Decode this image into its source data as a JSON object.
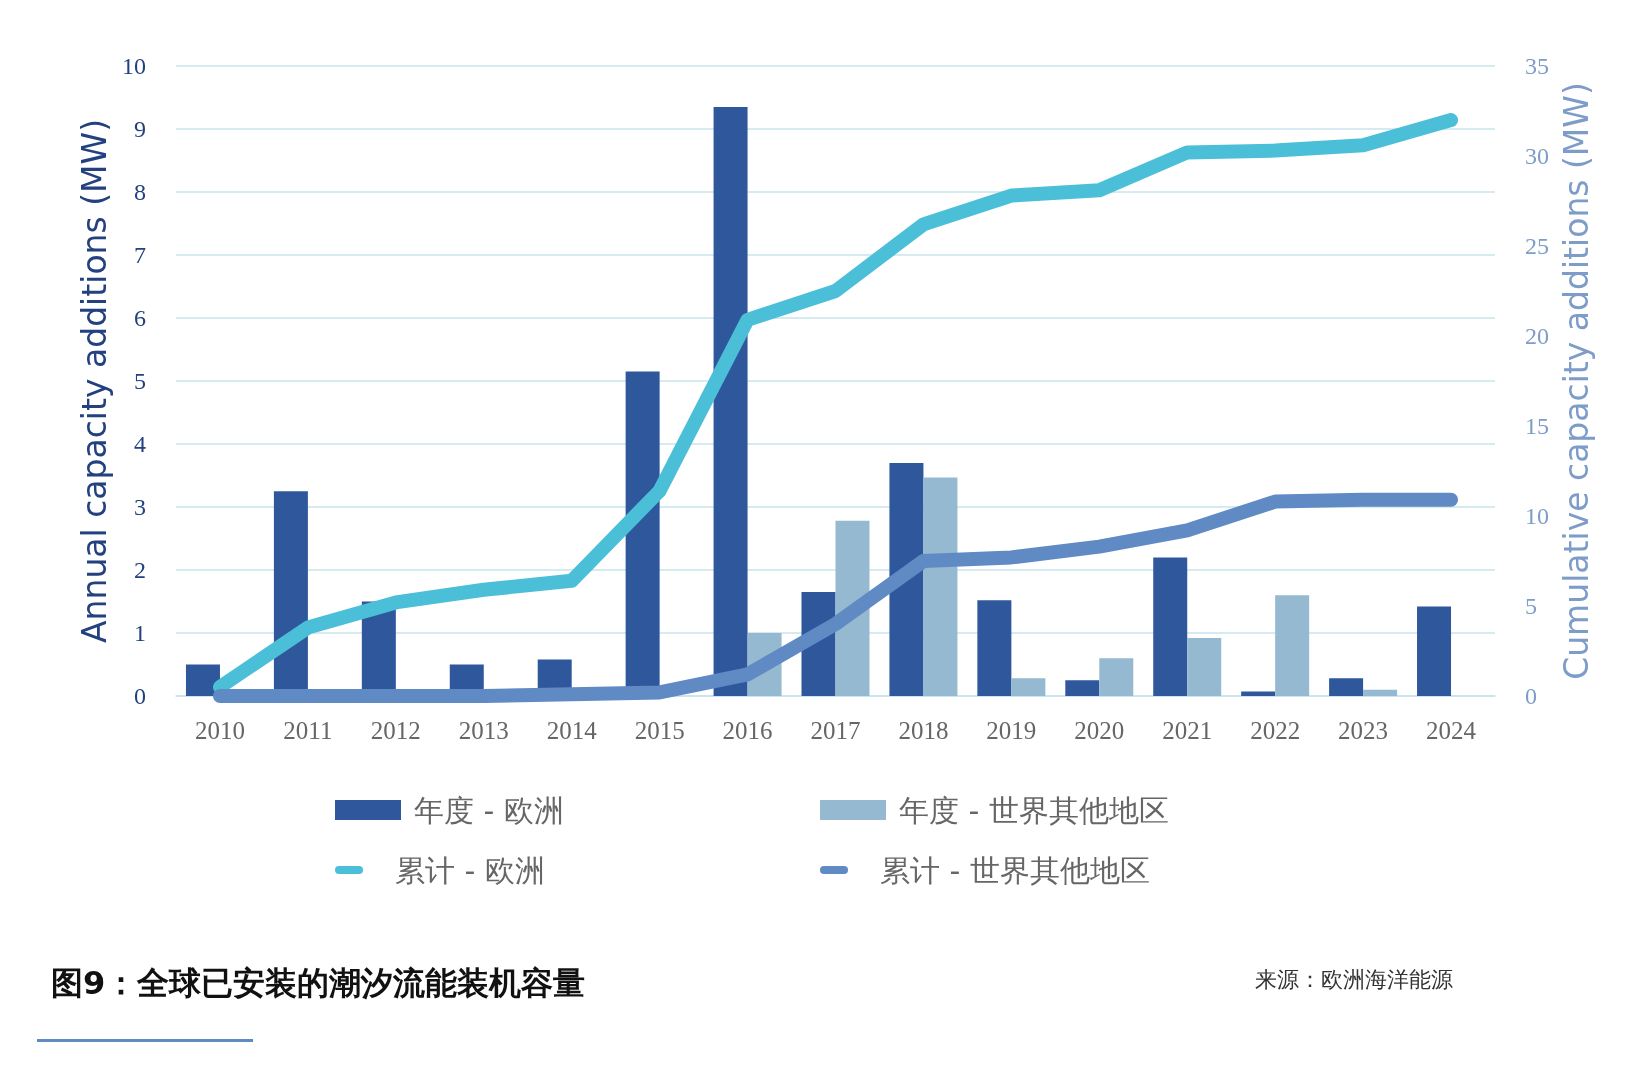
{
  "chart_data": {
    "type": "bar",
    "title": "图9：全球已安装的潮汐流能装机容量",
    "categories": [
      "2010",
      "2011",
      "2012",
      "2013",
      "2014",
      "2015",
      "2016",
      "2017",
      "2018",
      "2019",
      "2020",
      "2021",
      "2022",
      "2023",
      "2024"
    ],
    "series": [
      {
        "name": "年度 - 欧洲",
        "color": "#2e579c",
        "values": [
          0.5,
          3.25,
          1.5,
          0.5,
          0.58,
          5.15,
          9.35,
          1.65,
          3.7,
          1.52,
          0.25,
          2.2,
          0.07,
          0.28,
          1.42
        ]
      },
      {
        "name": "年度 - 世界其他地区",
        "color": "#95b9d0",
        "values": [
          null,
          null,
          null,
          null,
          null,
          null,
          1.0,
          2.78,
          3.47,
          0.28,
          0.6,
          0.92,
          1.6,
          0.1,
          null
        ]
      },
      {
        "name": "累计 - 欧洲",
        "type": "line",
        "axis": "y2",
        "color": "#4bbfd8",
        "values": [
          0.5,
          3.8,
          5.2,
          5.9,
          6.4,
          11.4,
          20.9,
          22.5,
          26.2,
          27.8,
          28.1,
          30.2,
          30.3,
          30.6,
          32.0
        ]
      },
      {
        "name": "累计 - 世界其他地区",
        "type": "line",
        "axis": "y2",
        "color": "#5f8ac4",
        "values": [
          0,
          0,
          0,
          0,
          0.1,
          0.2,
          1.2,
          4.0,
          7.5,
          7.7,
          8.3,
          9.2,
          10.8,
          10.9,
          10.9
        ]
      }
    ],
    "ylabel": "Annual capacity additions (MW)",
    "y2label": "Cumulative capacity additions (MW)",
    "ylim": [
      0,
      10
    ],
    "yticks": [
      0,
      1,
      2,
      3,
      4,
      5,
      6,
      7,
      8,
      9,
      10
    ],
    "y2lim": [
      0,
      35
    ],
    "y2ticks": [
      0,
      5,
      10,
      15,
      20,
      25,
      30,
      35
    ],
    "grid": "y",
    "legend": "bottom",
    "marker": "none",
    "line_style": "solid",
    "annotations": [
      "来源：欧洲海洋能源"
    ]
  }
}
